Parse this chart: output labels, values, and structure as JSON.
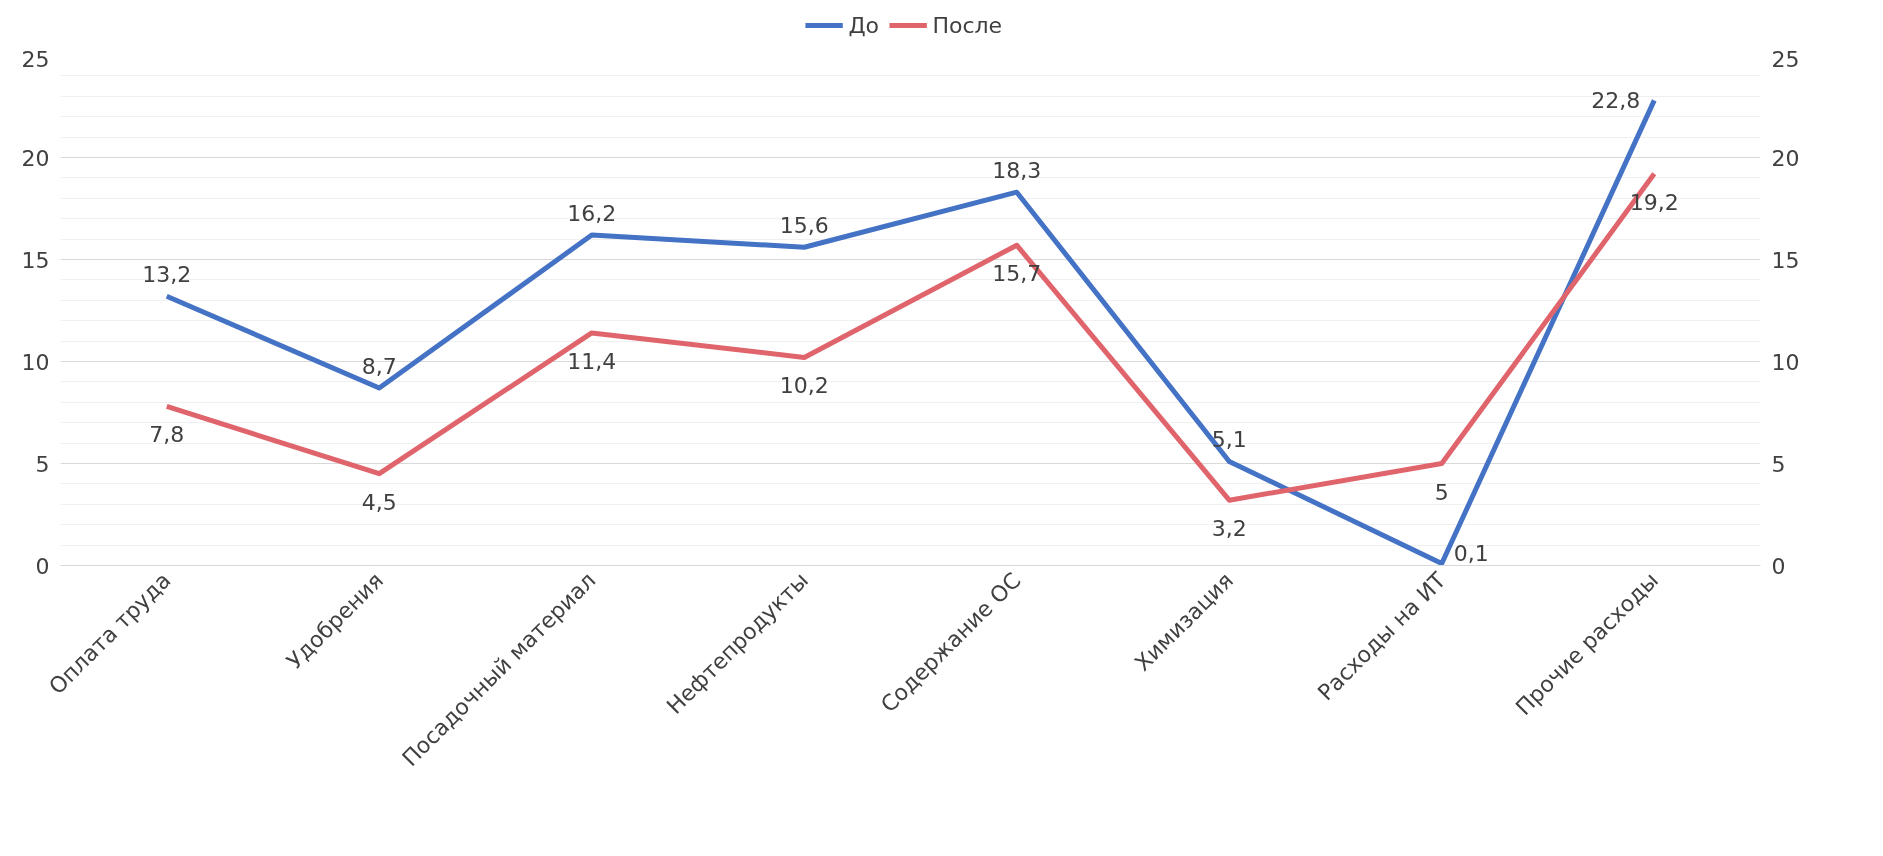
{
  "chart_data": {
    "type": "line",
    "categories": [
      "Оплата труда",
      "Удобрения",
      "Посадочный материал",
      "Нефтепродукты",
      "Содержание ОС",
      "Химизация",
      "Расходы на ИТ",
      "Прочие расходы"
    ],
    "series": [
      {
        "name": "До",
        "color": "#4472c4",
        "values": [
          13.2,
          8.7,
          16.2,
          15.6,
          18.3,
          5.1,
          0.1,
          22.8
        ],
        "value_labels": [
          "13,2",
          "8,7",
          "16,2",
          "15,6",
          "18,3",
          "5,1",
          "0,1",
          "22,8"
        ]
      },
      {
        "name": "После",
        "color": "#e0646b",
        "values": [
          7.8,
          4.5,
          11.4,
          10.2,
          15.7,
          3.2,
          5,
          19.2
        ],
        "value_labels": [
          "7,8",
          "4,5",
          "11,4",
          "10,2",
          "15,7",
          "3,2",
          "5",
          "19,2"
        ]
      }
    ],
    "ylim": [
      0,
      25
    ],
    "yticks": [
      0,
      5,
      10,
      15,
      20,
      25
    ],
    "y2lim": [
      0,
      25
    ],
    "y2ticks": [
      0,
      5,
      10,
      15,
      20,
      25
    ],
    "grid": "y",
    "legend": "top",
    "marker": "none",
    "line_style": "solid"
  }
}
